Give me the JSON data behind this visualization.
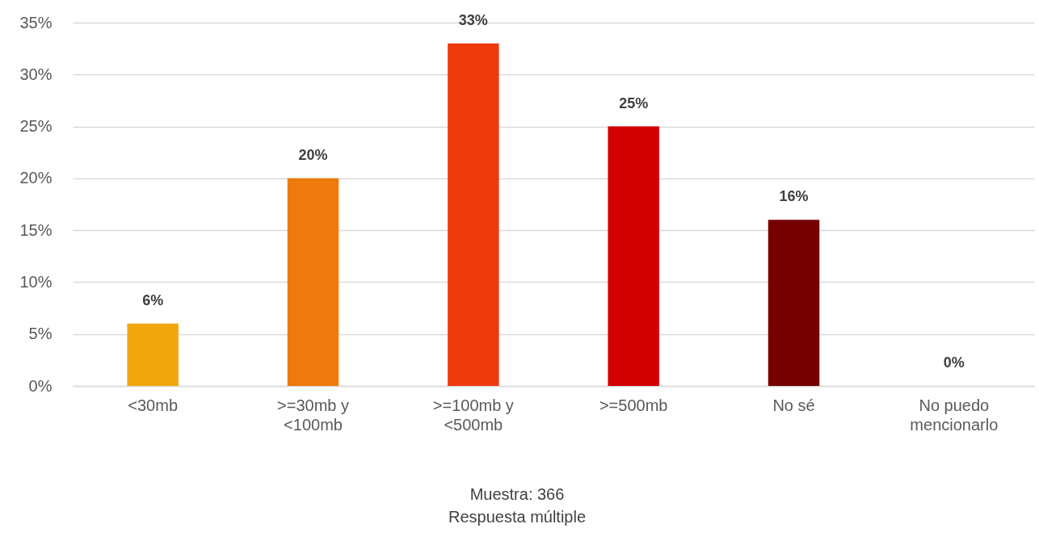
{
  "chart_data": {
    "type": "bar",
    "categories": [
      "<30mb",
      ">=30mb  y\n<100mb",
      ">=100mb y\n<500mb",
      ">=500mb",
      "No sé",
      "No puedo\nmencionarlo"
    ],
    "values": [
      6,
      20,
      33,
      25,
      16,
      0
    ],
    "colors": [
      "#f0a70e",
      "#ee790d",
      "#ef3a0e",
      "#d20000",
      "#760000",
      "#760000"
    ],
    "value_labels": [
      "6%",
      "20%",
      "33%",
      "25%",
      "16%",
      "0%"
    ],
    "ylim": [
      0,
      35
    ],
    "yticks": [
      {
        "value": 0,
        "label": "0%"
      },
      {
        "value": 5,
        "label": "5%"
      },
      {
        "value": 10,
        "label": "10%"
      },
      {
        "value": 15,
        "label": "15%"
      },
      {
        "value": 20,
        "label": "20%"
      },
      {
        "value": 25,
        "label": "25%"
      },
      {
        "value": 30,
        "label": "30%"
      },
      {
        "value": 35,
        "label": "35%"
      }
    ],
    "grid": "y",
    "annotations": [
      "Muestra: 366",
      "Respuesta múltiple"
    ]
  }
}
